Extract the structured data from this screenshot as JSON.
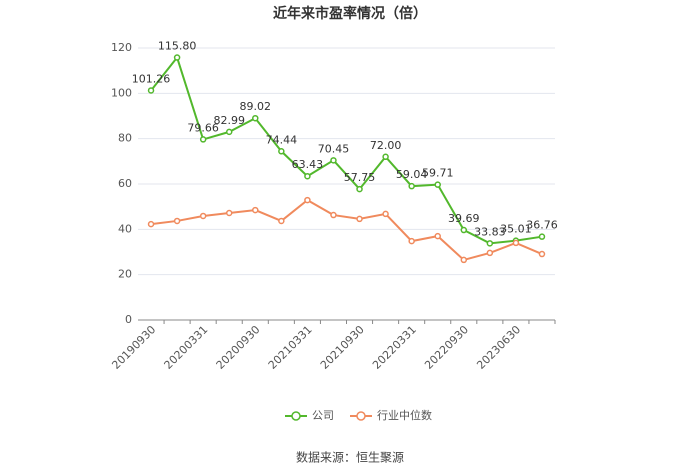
{
  "chart_data": {
    "type": "line",
    "title": "近年来市盈率情况（倍）",
    "source": "数据来源：恒生聚源",
    "categories": [
      "20190930",
      null,
      "20200331",
      null,
      "20200930",
      null,
      "20210331",
      null,
      "20210930",
      null,
      "20220331",
      null,
      "20220930",
      null,
      "20230630",
      null
    ],
    "series": [
      {
        "name": "公司",
        "color": "#52b82c",
        "values": [
          101.26,
          115.8,
          79.66,
          82.99,
          89.02,
          74.44,
          63.43,
          70.45,
          57.75,
          72.0,
          59.04,
          59.71,
          39.69,
          33.83,
          35.01,
          36.76
        ],
        "value_labels": [
          "101.26",
          "115.80",
          "79.66",
          "82.99",
          "89.02",
          "74.44",
          "63.43",
          "70.45",
          "57.75",
          "72.00",
          "59.04",
          "59.71",
          "39.69",
          "33.83",
          "35.01",
          "36.76"
        ]
      },
      {
        "name": "行业中位数",
        "color": "#f08a5d",
        "values": [
          42.3,
          43.7,
          45.9,
          47.2,
          48.5,
          43.7,
          52.9,
          46.3,
          44.6,
          46.8,
          34.8,
          37.0,
          26.5,
          29.6,
          34.0,
          29.1
        ]
      }
    ],
    "ylim": [
      0,
      120
    ],
    "yticks": [
      0,
      20,
      40,
      60,
      80,
      100,
      120
    ],
    "grid": true,
    "legend": "bottom"
  }
}
